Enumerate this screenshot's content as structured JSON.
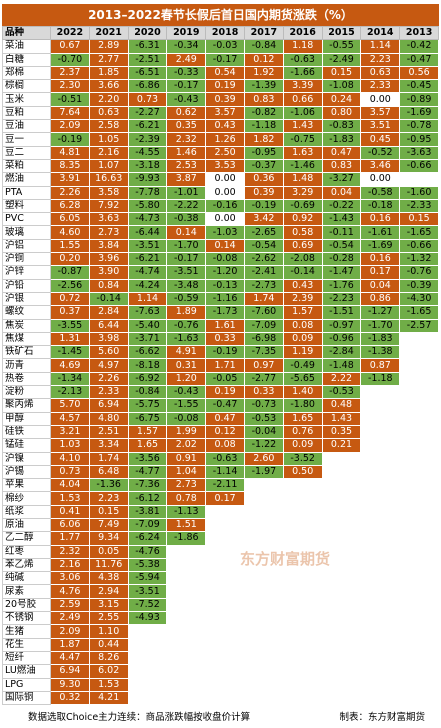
{
  "title": "2013–2022春节长假后首日国内期货涨跌（%）",
  "columns": [
    "品种",
    "2022",
    "2021",
    "2020",
    "2019",
    "2018",
    "2017",
    "2016",
    "2015",
    "2014",
    "2013"
  ],
  "rows": [
    {
      "name": "菜油",
      "values": [
        "0.67",
        "2.89",
        "-6.31",
        "-0.34",
        "-0.03",
        "-0.84",
        "1.18",
        "-0.55",
        "1.14",
        "-0.42"
      ]
    },
    {
      "name": "白糖",
      "values": [
        "-0.70",
        "2.77",
        "-2.51",
        "2.49",
        "-0.17",
        "0.12",
        "-0.63",
        "-2.49",
        "2.23",
        "-0.47"
      ]
    },
    {
      "name": "郑棉",
      "values": [
        "2.37",
        "1.85",
        "-6.51",
        "-0.33",
        "0.54",
        "1.92",
        "-1.66",
        "0.15",
        "0.63",
        "0.56"
      ]
    },
    {
      "name": "棕榈",
      "values": [
        "2.30",
        "3.66",
        "-6.86",
        "-0.17",
        "0.19",
        "-1.39",
        "3.39",
        "-1.08",
        "2.33",
        "-0.45"
      ]
    },
    {
      "name": "玉米",
      "values": [
        "-0.51",
        "2.20",
        "0.73",
        "-0.43",
        "0.39",
        "0.83",
        "0.66",
        "0.24",
        "0.00",
        "-0.89"
      ]
    },
    {
      "name": "豆粕",
      "values": [
        "7.64",
        "0.63",
        "-2.27",
        "0.62",
        "3.57",
        "-0.82",
        "-1.06",
        "0.80",
        "3.57",
        "-1.69"
      ]
    },
    {
      "name": "豆油",
      "values": [
        "2.09",
        "2.58",
        "-6.21",
        "0.35",
        "0.43",
        "-1.18",
        "1.43",
        "-0.83",
        "3.51",
        "-0.78"
      ]
    },
    {
      "name": "豆一",
      "values": [
        "-0.19",
        "1.05",
        "-2.39",
        "2.32",
        "1.26",
        "1.82",
        "-0.75",
        "-1.83",
        "0.45",
        "-0.95"
      ]
    },
    {
      "name": "豆二",
      "values": [
        "4.81",
        "2.16",
        "-4.55",
        "1.46",
        "2.50",
        "-0.95",
        "1.63",
        "0.47",
        "-0.52",
        "-3.63"
      ]
    },
    {
      "name": "菜粕",
      "values": [
        "8.35",
        "1.07",
        "-3.18",
        "2.53",
        "3.53",
        "-0.37",
        "-1.46",
        "0.83",
        "3.46",
        "-0.66"
      ]
    },
    {
      "name": "燃油",
      "values": [
        "3.91",
        "16.63",
        "-9.93",
        "3.87",
        "0.00",
        "0.36",
        "1.48",
        "-3.27",
        "0.00",
        null
      ]
    },
    {
      "name": "PTA",
      "values": [
        "2.26",
        "3.58",
        "-7.78",
        "-1.01",
        "0.00",
        "0.39",
        "3.29",
        "0.04",
        "-0.58",
        "-1.60"
      ]
    },
    {
      "name": "塑料",
      "values": [
        "6.28",
        "7.92",
        "-5.80",
        "-2.22",
        "-0.16",
        "-0.19",
        "-0.69",
        "-0.22",
        "-0.18",
        "-2.33"
      ]
    },
    {
      "name": "PVC",
      "values": [
        "6.05",
        "3.63",
        "-4.73",
        "-0.38",
        "0.00",
        "3.42",
        "0.92",
        "-1.43",
        "0.16",
        "0.15"
      ]
    },
    {
      "name": "玻璃",
      "values": [
        "4.60",
        "2.73",
        "-6.44",
        "0.14",
        "-1.03",
        "-2.65",
        "0.58",
        "-0.11",
        "-1.61",
        "-1.65"
      ]
    },
    {
      "name": "沪铝",
      "values": [
        "1.55",
        "3.84",
        "-3.51",
        "-1.70",
        "0.14",
        "-0.54",
        "0.69",
        "-0.54",
        "-1.69",
        "-0.66"
      ]
    },
    {
      "name": "沪铜",
      "values": [
        "0.20",
        "3.96",
        "-6.21",
        "-0.17",
        "-0.08",
        "-2.62",
        "-2.08",
        "-0.28",
        "0.16",
        "-1.32"
      ]
    },
    {
      "name": "沪锌",
      "values": [
        "-0.87",
        "3.90",
        "-4.74",
        "-3.51",
        "-1.20",
        "-2.41",
        "-0.14",
        "-1.47",
        "0.17",
        "-0.76"
      ]
    },
    {
      "name": "沪铅",
      "values": [
        "-2.56",
        "0.84",
        "-4.24",
        "-3.48",
        "-0.13",
        "-2.73",
        "0.43",
        "-1.76",
        "0.04",
        "-0.39"
      ]
    },
    {
      "name": "沪银",
      "values": [
        "0.72",
        "-0.14",
        "1.14",
        "-0.59",
        "-1.16",
        "1.74",
        "2.39",
        "-2.23",
        "0.86",
        "-4.30"
      ]
    },
    {
      "name": "螺纹",
      "values": [
        "0.37",
        "2.84",
        "-7.63",
        "1.89",
        "-1.73",
        "-7.60",
        "1.57",
        "-1.51",
        "-1.27",
        "-1.65"
      ]
    },
    {
      "name": "焦炭",
      "values": [
        "-3.55",
        "6.44",
        "-5.40",
        "-0.76",
        "1.61",
        "-7.09",
        "0.08",
        "-0.97",
        "-1.70",
        "-2.57"
      ]
    },
    {
      "name": "焦煤",
      "values": [
        "1.31",
        "3.98",
        "-3.71",
        "-1.63",
        "0.33",
        "-6.98",
        "0.09",
        "-0.96",
        "-1.83",
        null
      ]
    },
    {
      "name": "铁矿石",
      "values": [
        "-1.45",
        "5.60",
        "-6.62",
        "4.91",
        "-0.19",
        "-7.35",
        "1.19",
        "-2.84",
        "-1.38",
        null
      ]
    },
    {
      "name": "沥青",
      "values": [
        "4.69",
        "4.97",
        "-8.18",
        "0.31",
        "1.71",
        "0.97",
        "-0.49",
        "-1.48",
        "0.87",
        null
      ]
    },
    {
      "name": "热卷",
      "values": [
        "-1.34",
        "2.26",
        "-6.92",
        "1.20",
        "-0.05",
        "-2.77",
        "-5.65",
        "2.22",
        "-1.18",
        null
      ]
    },
    {
      "name": "淀粉",
      "values": [
        "-2.13",
        "2.33",
        "-0.84",
        "-0.43",
        "0.19",
        "0.33",
        "1.40",
        "-0.53",
        null,
        null
      ]
    },
    {
      "name": "聚丙烯",
      "values": [
        "5.70",
        "6.94",
        "-5.75",
        "-1.55",
        "-0.47",
        "-0.73",
        "-1.80",
        "0.48",
        null,
        null
      ]
    },
    {
      "name": "甲醇",
      "values": [
        "4.57",
        "4.80",
        "-6.75",
        "-0.08",
        "0.47",
        "-0.53",
        "1.65",
        "1.43",
        null,
        null
      ]
    },
    {
      "name": "硅铁",
      "values": [
        "3.21",
        "2.51",
        "1.57",
        "1.99",
        "0.12",
        "-0.04",
        "0.76",
        "0.35",
        null,
        null
      ]
    },
    {
      "name": "锰硅",
      "values": [
        "1.03",
        "3.34",
        "1.65",
        "2.02",
        "0.08",
        "-1.22",
        "0.09",
        "0.21",
        null,
        null
      ]
    },
    {
      "name": "沪镍",
      "values": [
        "4.10",
        "1.74",
        "-3.56",
        "0.91",
        "-0.63",
        "2.60",
        "-3.52",
        null,
        null,
        null
      ]
    },
    {
      "name": "沪锡",
      "values": [
        "0.73",
        "6.48",
        "-4.77",
        "1.04",
        "-1.14",
        "-1.97",
        "0.50",
        null,
        null,
        null
      ]
    },
    {
      "name": "苹果",
      "values": [
        "4.04",
        "-1.36",
        "-7.36",
        "2.73",
        "-2.11",
        null,
        null,
        null,
        null,
        null
      ]
    },
    {
      "name": "棉纱",
      "values": [
        "1.53",
        "2.23",
        "-6.12",
        "0.78",
        "0.17",
        null,
        null,
        null,
        null,
        null
      ]
    },
    {
      "name": "纸浆",
      "values": [
        "0.41",
        "0.15",
        "-3.81",
        "-1.13",
        null,
        null,
        null,
        null,
        null,
        null
      ]
    },
    {
      "name": "原油",
      "values": [
        "6.06",
        "7.49",
        "-7.09",
        "1.51",
        null,
        null,
        null,
        null,
        null,
        null
      ]
    },
    {
      "name": "乙二醇",
      "values": [
        "1.77",
        "9.34",
        "-6.24",
        "-1.86",
        null,
        null,
        null,
        null,
        null,
        null
      ]
    },
    {
      "name": "红枣",
      "values": [
        "2.32",
        "0.05",
        "-4.76",
        null,
        null,
        null,
        null,
        null,
        null,
        null
      ]
    },
    {
      "name": "苯乙烯",
      "values": [
        "2.16",
        "11.76",
        "-5.38",
        null,
        null,
        null,
        null,
        null,
        null,
        null
      ]
    },
    {
      "name": "纯碱",
      "values": [
        "3.06",
        "4.38",
        "-5.94",
        null,
        null,
        null,
        null,
        null,
        null,
        null
      ]
    },
    {
      "name": "尿素",
      "values": [
        "4.76",
        "2.94",
        "-3.51",
        null,
        null,
        null,
        null,
        null,
        null,
        null
      ]
    },
    {
      "name": "20号胶",
      "values": [
        "2.59",
        "3.15",
        "-7.52",
        null,
        null,
        null,
        null,
        null,
        null,
        null
      ]
    },
    {
      "name": "不锈钢",
      "values": [
        "2.49",
        "2.55",
        "-4.93",
        null,
        null,
        null,
        null,
        null,
        null,
        null
      ]
    },
    {
      "name": "生猪",
      "values": [
        "2.09",
        "1.10",
        null,
        null,
        null,
        null,
        null,
        null,
        null,
        null
      ]
    },
    {
      "name": "花生",
      "values": [
        "1.87",
        "0.44",
        null,
        null,
        null,
        null,
        null,
        null,
        null,
        null
      ]
    },
    {
      "name": "短纤",
      "values": [
        "4.47",
        "8.26",
        null,
        null,
        null,
        null,
        null,
        null,
        null,
        null
      ]
    },
    {
      "name": "LU燃油",
      "values": [
        "6.94",
        "6.02",
        null,
        null,
        null,
        null,
        null,
        null,
        null,
        null
      ]
    },
    {
      "name": "LPG",
      "values": [
        "9.30",
        "1.53",
        null,
        null,
        null,
        null,
        null,
        null,
        null,
        null
      ]
    },
    {
      "name": "国际铜",
      "values": [
        "0.32",
        "4.21",
        null,
        null,
        null,
        null,
        null,
        null,
        null,
        null
      ]
    }
  ],
  "footer": {
    "source": "数据选取Choice主力连续：商品涨跌幅按收盘价计算",
    "credit": "制表：东方财富期货"
  },
  "watermark": "东方财富期货"
}
